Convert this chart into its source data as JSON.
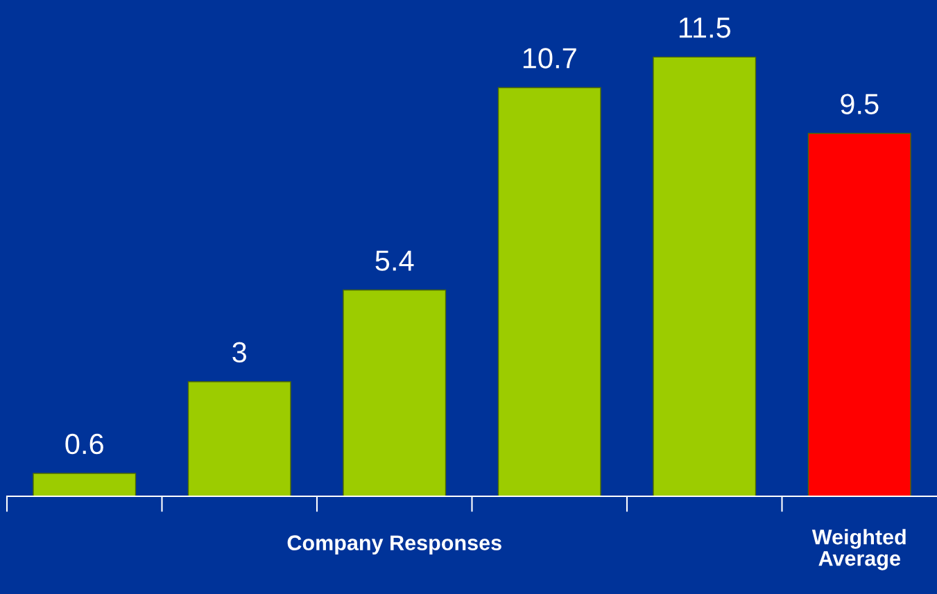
{
  "chart_data": {
    "type": "bar",
    "categories": [
      null,
      null,
      null,
      null,
      null,
      "Weighted Average"
    ],
    "values": [
      0.6,
      3,
      5.4,
      10.7,
      11.5,
      9.5
    ],
    "colors": [
      "#9ccc00",
      "#9ccc00",
      "#9ccc00",
      "#9ccc00",
      "#9ccc00",
      "#ff0000"
    ],
    "data_labels": true,
    "annotations": [
      "Company Responses"
    ],
    "grid": false,
    "legend": false
  }
}
